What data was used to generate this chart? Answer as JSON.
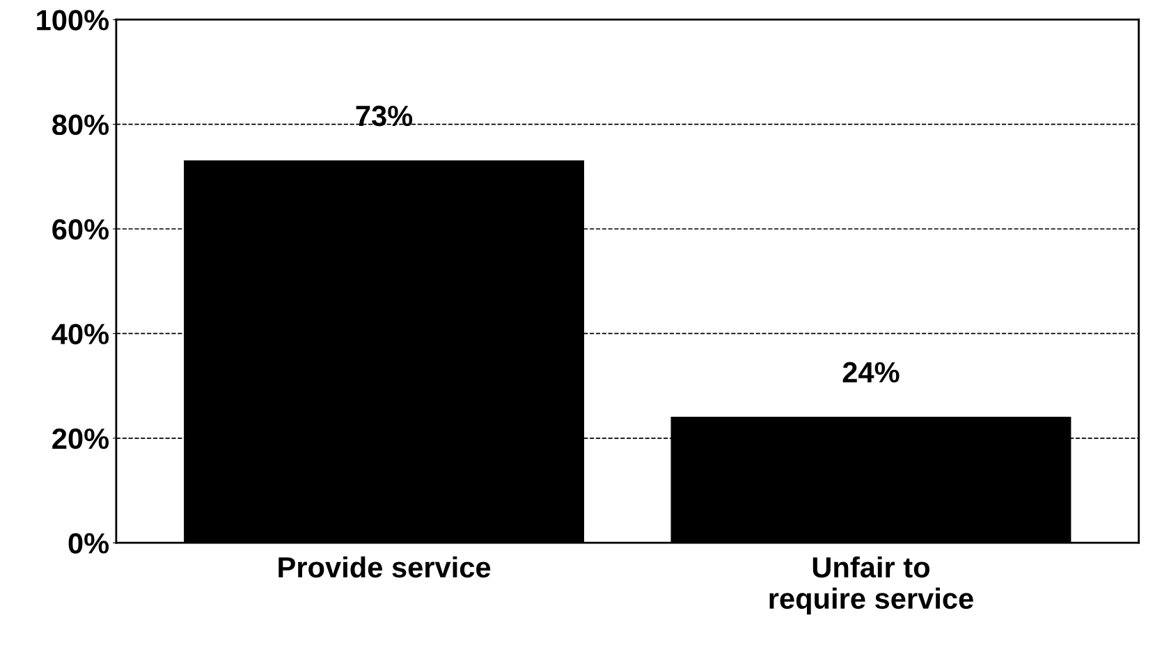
{
  "chart_data": {
    "type": "bar",
    "categories": [
      "Provide service",
      "Unfair to\nrequire service"
    ],
    "values": [
      73,
      24
    ],
    "color": "#000000",
    "value_labels": [
      "73%",
      "24%"
    ],
    "ylim": [
      0,
      100
    ],
    "yticks": [
      {
        "value": 0,
        "label": "0%"
      },
      {
        "value": 20,
        "label": "20%"
      },
      {
        "value": 40,
        "label": "40%"
      },
      {
        "value": 60,
        "label": "60%"
      },
      {
        "value": 80,
        "label": "80%"
      },
      {
        "value": 100,
        "label": "100%"
      }
    ],
    "grid": "y",
    "legend": false
  }
}
